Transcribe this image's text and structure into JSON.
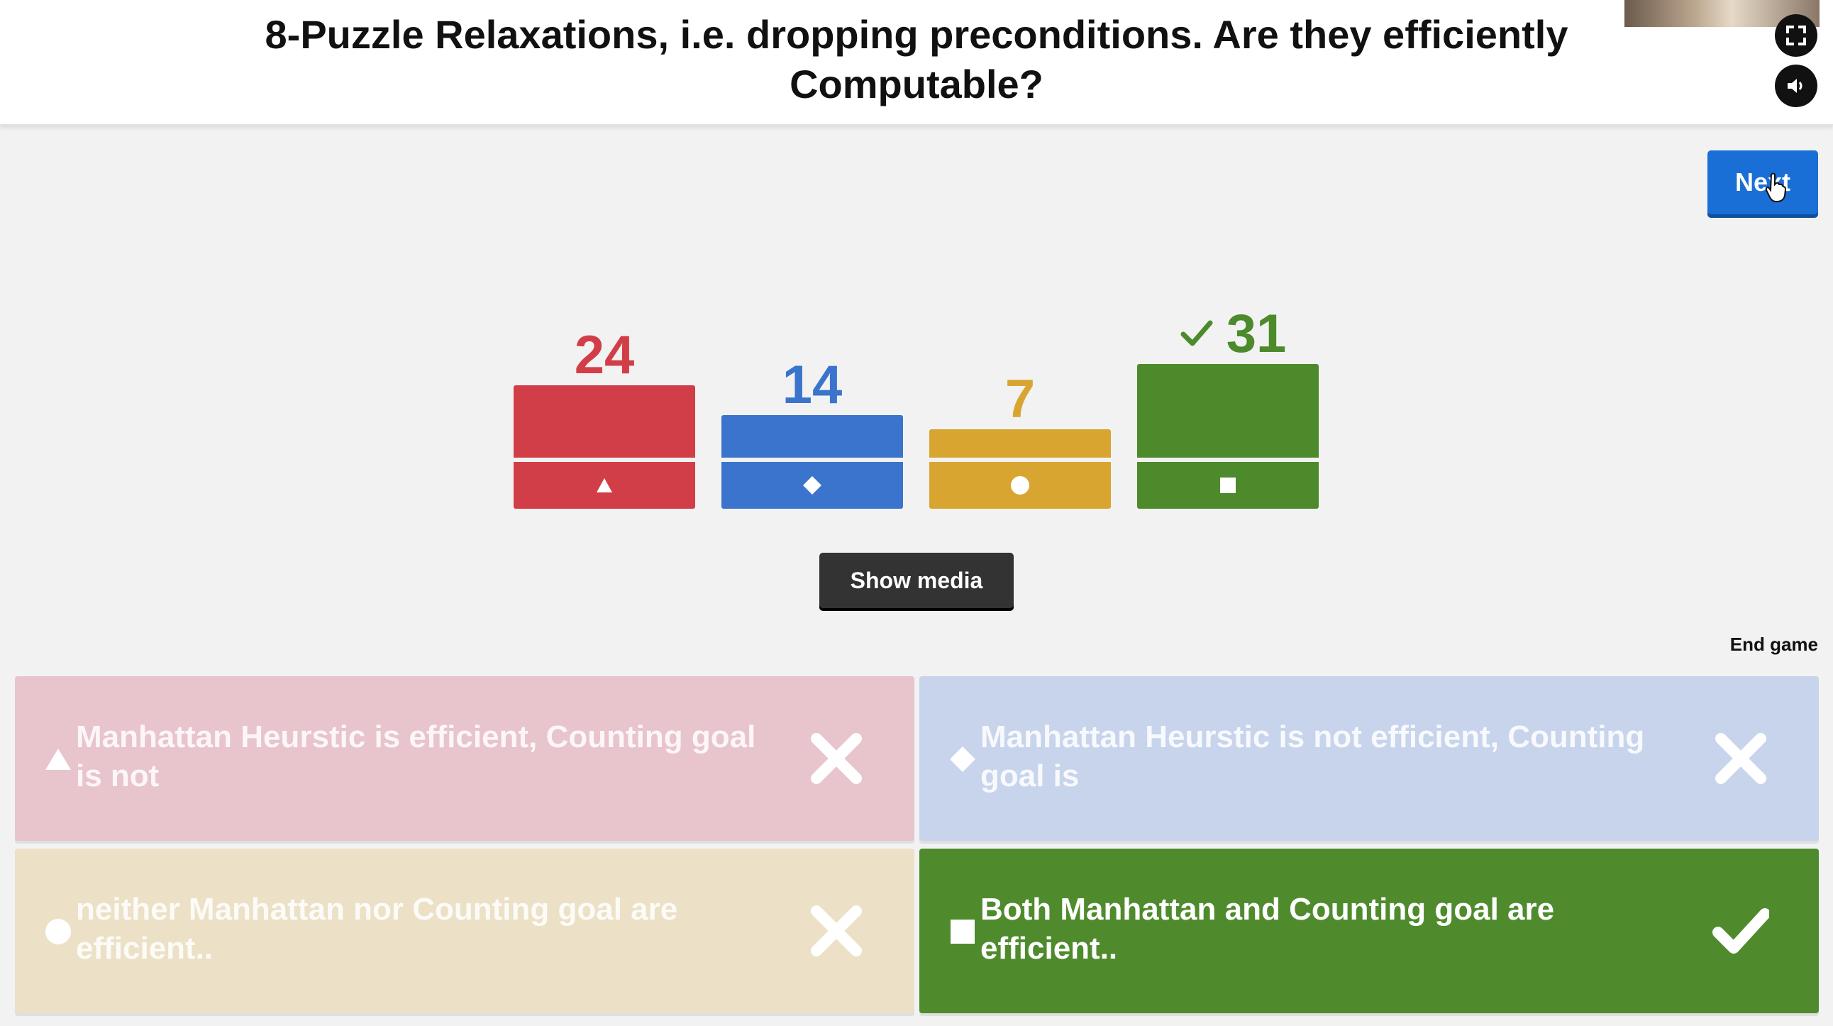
{
  "question": {
    "title": "8-Puzzle Relaxations, i.e. dropping preconditions. Are they efficiently Computable?"
  },
  "controls": {
    "next_label": "Next",
    "show_media_label": "Show media",
    "end_game_label": "End game",
    "fullscreen_icon": "fullscreen-icon",
    "volume_icon": "volume-icon"
  },
  "colors": {
    "red": "#d23e48",
    "blue": "#3a74cc",
    "yellow": "#d8a630",
    "green": "#4c8a2b",
    "answer_red_faded": "#e8c4cd",
    "answer_blue_faded": "#c7d4ec",
    "answer_yellow_faded": "#ece1c6",
    "answer_green": "#4f8b2d"
  },
  "results": [
    {
      "shape": "triangle",
      "count": "24",
      "votes": 24,
      "correct": false
    },
    {
      "shape": "diamond",
      "count": "14",
      "votes": 14,
      "correct": false
    },
    {
      "shape": "circle",
      "count": "7",
      "votes": 7,
      "correct": false
    },
    {
      "shape": "square",
      "count": "31",
      "votes": 31,
      "correct": true
    }
  ],
  "answers": [
    {
      "shape": "triangle",
      "text": "Manhattan Heurstic is efficient, Counting goal is not",
      "correct": false
    },
    {
      "shape": "diamond",
      "text": "Manhattan Heurstic is not efficient, Counting goal is",
      "correct": false
    },
    {
      "shape": "circle",
      "text": "neither Manhattan nor Counting goal are efficient..",
      "correct": false
    },
    {
      "shape": "square",
      "text": "Both Manhattan and Counting goal are efficient..",
      "correct": true
    }
  ]
}
